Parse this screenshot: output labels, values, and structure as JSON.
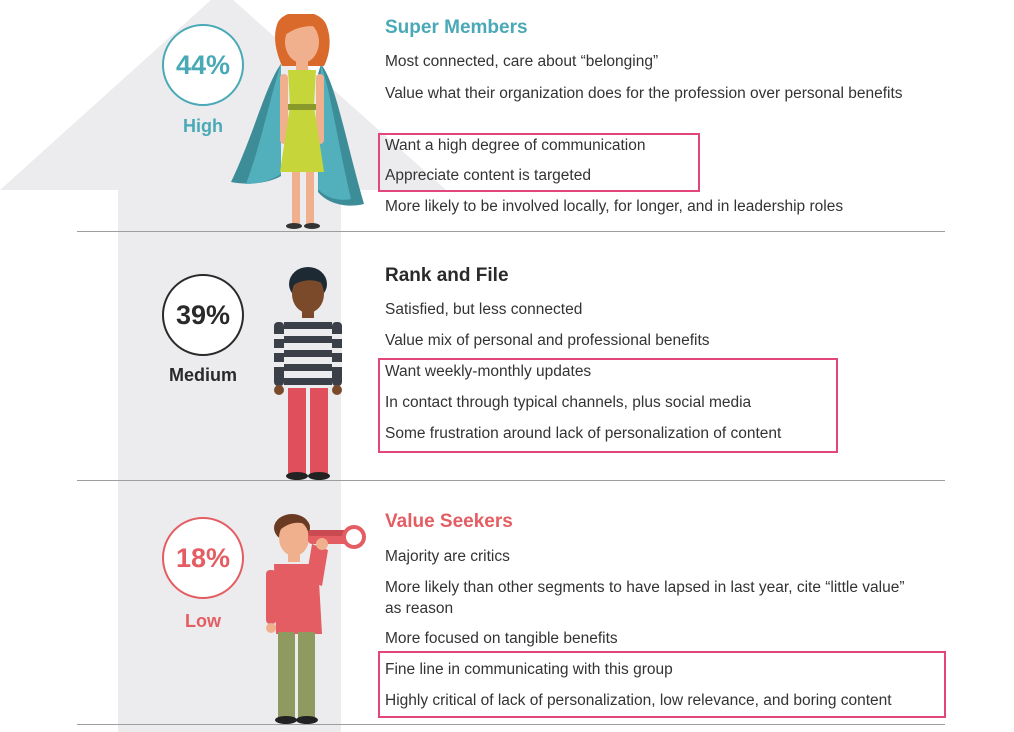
{
  "colors": {
    "teal": "#4aa9b6",
    "dark": "#2a2a2a",
    "coral": "#e35d62",
    "highlight": "#e2467c",
    "arrow": "#ececee"
  },
  "segments": [
    {
      "percent": "44%",
      "level": "High",
      "title": "Super Members",
      "lines": [
        "Most connected, care about “belonging”",
        "Value what their organization does for the profession over personal benefits",
        "Want a high degree of communication",
        "Appreciate content is targeted",
        "More likely to be involved locally, for longer, and in leadership roles"
      ]
    },
    {
      "percent": "39%",
      "level": "Medium",
      "title": "Rank and File",
      "lines": [
        "Satisfied, but less connected",
        "Value mix of personal and professional benefits",
        "Want weekly-monthly updates",
        "In contact through typical channels, plus social media",
        "Some frustration around lack of personalization of content"
      ]
    },
    {
      "percent": "18%",
      "level": "Low",
      "title": "Value Seekers",
      "lines": [
        "Majority are critics",
        "More likely than other segments to have lapsed in last year, cite “little value” as reason",
        "More focused on tangible benefits",
        "Fine line in communicating with this group",
        "Highly critical of lack of personalization, low relevance, and boring content"
      ]
    }
  ]
}
